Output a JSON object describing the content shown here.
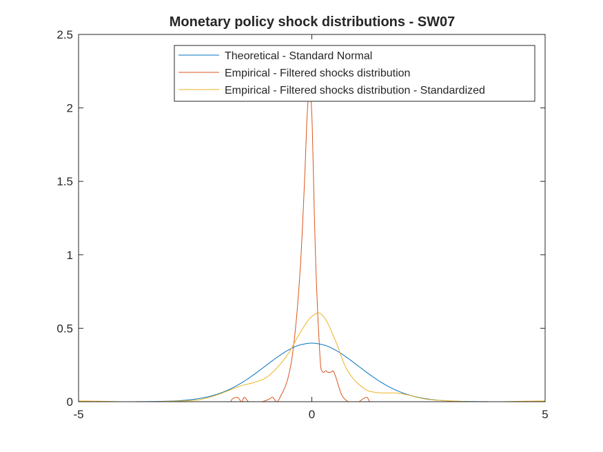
{
  "chart_data": {
    "type": "line",
    "title": "Monetary policy shock distributions - SW07",
    "xlabel": "",
    "ylabel": "",
    "xlim": [
      -5,
      5
    ],
    "ylim": [
      0,
      2.5
    ],
    "xticks": [
      -5,
      0,
      5
    ],
    "yticks": [
      0,
      0.5,
      1,
      1.5,
      2,
      2.5
    ],
    "xtick_labels": [
      "-5",
      "0",
      "5"
    ],
    "ytick_labels": [
      "0",
      "0.5",
      "1",
      "1.5",
      "2",
      "2.5"
    ],
    "grid": false,
    "legend_position": "top-right",
    "series": [
      {
        "name": "Theoretical - Standard Normal",
        "color": "#0072BD",
        "x": [
          -5,
          -4.5,
          -4,
          -3.5,
          -3,
          -2.75,
          -2.5,
          -2.25,
          -2,
          -1.75,
          -1.5,
          -1.25,
          -1,
          -0.75,
          -0.5,
          -0.25,
          0,
          0.25,
          0.5,
          0.75,
          1,
          1.25,
          1.5,
          1.75,
          2,
          2.25,
          2.5,
          2.75,
          3,
          3.5,
          4,
          4.5,
          5
        ],
        "y": [
          0.0,
          0.0,
          0.0001,
          0.0009,
          0.0044,
          0.0091,
          0.0175,
          0.0317,
          0.054,
          0.0863,
          0.1295,
          0.1826,
          0.242,
          0.3011,
          0.3521,
          0.3867,
          0.3989,
          0.3867,
          0.3521,
          0.3011,
          0.242,
          0.1826,
          0.1295,
          0.0863,
          0.054,
          0.0317,
          0.0175,
          0.0091,
          0.0044,
          0.0009,
          0.0001,
          0.0,
          0.0
        ]
      },
      {
        "name": "Empirical - Filtered shocks distribution",
        "color": "#D95319",
        "x": [
          -5,
          -2.0,
          -1.75,
          -1.7,
          -1.6,
          -1.5,
          -1.45,
          -1.35,
          -1.25,
          -1.1,
          -0.9,
          -0.85,
          -0.75,
          -0.65,
          -0.55,
          -0.45,
          -0.35,
          -0.25,
          -0.15,
          -0.1,
          -0.06,
          -0.03,
          0.0,
          0.03,
          0.06,
          0.1,
          0.15,
          0.2,
          0.25,
          0.3,
          0.35,
          0.4,
          0.45,
          0.5,
          0.55,
          0.6,
          0.65,
          0.7,
          0.8,
          0.9,
          1.0,
          1.1,
          1.18,
          1.25,
          1.35,
          1.5,
          5
        ],
        "y": [
          0,
          0,
          0.0,
          0.02,
          0.03,
          0.0,
          0.03,
          0.0,
          0.0,
          0.0,
          0.02,
          0.03,
          0.0,
          0.05,
          0.12,
          0.25,
          0.5,
          0.9,
          1.55,
          1.95,
          2.12,
          2.1,
          1.95,
          1.6,
          1.2,
          0.8,
          0.45,
          0.22,
          0.2,
          0.21,
          0.2,
          0.2,
          0.21,
          0.18,
          0.13,
          0.08,
          0.04,
          0.02,
          0.0,
          0.0,
          0.0,
          0.02,
          0.03,
          0.0,
          0.0,
          0.0,
          0
        ]
      },
      {
        "name": "Empirical - Filtered shocks distribution - Standardized",
        "color": "#EDB120",
        "x": [
          -5,
          -4.5,
          -4,
          -3.5,
          -3,
          -2.5,
          -2.25,
          -2,
          -1.75,
          -1.5,
          -1.25,
          -1,
          -0.75,
          -0.5,
          -0.25,
          0,
          0.15,
          0.25,
          0.5,
          0.75,
          1,
          1.25,
          1.5,
          1.75,
          2,
          2.25,
          2.5,
          3,
          3.5,
          4,
          4.5,
          5
        ],
        "y": [
          0.005,
          0.003,
          0.0,
          0.0,
          0.003,
          0.01,
          0.025,
          0.05,
          0.08,
          0.11,
          0.13,
          0.16,
          0.23,
          0.33,
          0.47,
          0.58,
          0.605,
          0.58,
          0.42,
          0.22,
          0.12,
          0.07,
          0.06,
          0.06,
          0.05,
          0.03,
          0.015,
          0.005,
          0.0,
          0.0,
          0.003,
          0.005
        ]
      }
    ]
  }
}
